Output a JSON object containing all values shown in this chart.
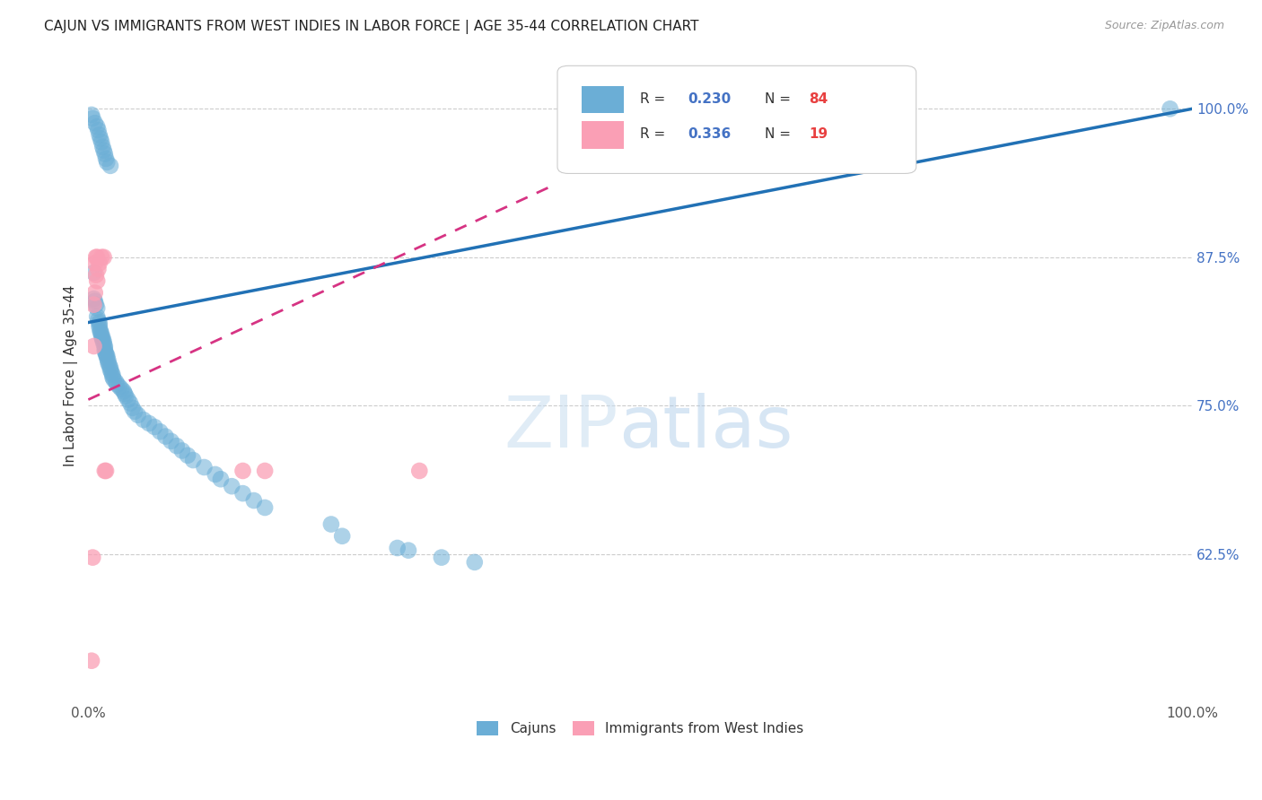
{
  "title": "CAJUN VS IMMIGRANTS FROM WEST INDIES IN LABOR FORCE | AGE 35-44 CORRELATION CHART",
  "source": "Source: ZipAtlas.com",
  "ylabel": "In Labor Force | Age 35-44",
  "ytick_labels": [
    "100.0%",
    "87.5%",
    "75.0%",
    "62.5%"
  ],
  "ytick_values": [
    1.0,
    0.875,
    0.75,
    0.625
  ],
  "xlim": [
    0.0,
    1.0
  ],
  "ylim": [
    0.5,
    1.05
  ],
  "legend_blue_r": "0.230",
  "legend_blue_n": "84",
  "legend_pink_r": "0.336",
  "legend_pink_n": "19",
  "legend_label_cajun": "Cajuns",
  "legend_label_west_indies": "Immigrants from West Indies",
  "blue_color": "#6baed6",
  "pink_color": "#fa9fb5",
  "blue_line_color": "#2171b5",
  "pink_line_color": "#d63383",
  "blue_points_x": [
    0.005,
    0.005,
    0.006,
    0.007,
    0.008,
    0.008,
    0.009,
    0.01,
    0.01,
    0.01,
    0.011,
    0.011,
    0.012,
    0.012,
    0.013,
    0.013,
    0.014,
    0.014,
    0.015,
    0.015,
    0.015,
    0.016,
    0.016,
    0.017,
    0.017,
    0.018,
    0.018,
    0.019,
    0.02,
    0.02,
    0.021,
    0.022,
    0.022,
    0.023,
    0.025,
    0.026,
    0.028,
    0.03,
    0.032,
    0.033,
    0.034,
    0.036,
    0.038,
    0.04,
    0.042,
    0.045,
    0.05,
    0.055,
    0.06,
    0.065,
    0.07,
    0.075,
    0.08,
    0.085,
    0.09,
    0.095,
    0.105,
    0.115,
    0.12,
    0.13,
    0.14,
    0.15,
    0.16,
    0.22,
    0.23,
    0.28,
    0.29,
    0.32,
    0.35,
    0.98,
    0.003,
    0.004,
    0.006,
    0.008,
    0.009,
    0.01,
    0.011,
    0.012,
    0.013,
    0.014,
    0.015,
    0.016,
    0.017,
    0.02
  ],
  "blue_points_y": [
    0.862,
    0.84,
    0.838,
    0.835,
    0.832,
    0.825,
    0.822,
    0.82,
    0.818,
    0.816,
    0.813,
    0.812,
    0.81,
    0.808,
    0.807,
    0.805,
    0.804,
    0.802,
    0.8,
    0.798,
    0.796,
    0.794,
    0.793,
    0.792,
    0.79,
    0.788,
    0.786,
    0.784,
    0.782,
    0.78,
    0.778,
    0.776,
    0.774,
    0.772,
    0.77,
    0.768,
    0.766,
    0.764,
    0.762,
    0.76,
    0.758,
    0.755,
    0.752,
    0.748,
    0.745,
    0.742,
    0.738,
    0.735,
    0.732,
    0.728,
    0.724,
    0.72,
    0.716,
    0.712,
    0.708,
    0.704,
    0.698,
    0.692,
    0.688,
    0.682,
    0.676,
    0.67,
    0.664,
    0.65,
    0.64,
    0.63,
    0.628,
    0.622,
    0.618,
    1.0,
    0.995,
    0.992,
    0.988,
    0.985,
    0.982,
    0.978,
    0.975,
    0.972,
    0.968,
    0.965,
    0.962,
    0.958,
    0.955,
    0.952
  ],
  "pink_points_x": [
    0.003,
    0.004,
    0.005,
    0.005,
    0.006,
    0.006,
    0.007,
    0.007,
    0.008,
    0.008,
    0.009,
    0.01,
    0.012,
    0.014,
    0.015,
    0.016,
    0.14,
    0.16,
    0.3
  ],
  "pink_points_y": [
    0.535,
    0.622,
    0.835,
    0.8,
    0.87,
    0.845,
    0.875,
    0.86,
    0.875,
    0.855,
    0.865,
    0.87,
    0.875,
    0.875,
    0.695,
    0.695,
    0.695,
    0.695,
    0.695
  ],
  "blue_trendline_x": [
    0.0,
    1.0
  ],
  "blue_trendline_y": [
    0.82,
    1.0
  ],
  "pink_trendline_x": [
    0.0,
    0.42
  ],
  "pink_trendline_y": [
    0.755,
    0.935
  ]
}
